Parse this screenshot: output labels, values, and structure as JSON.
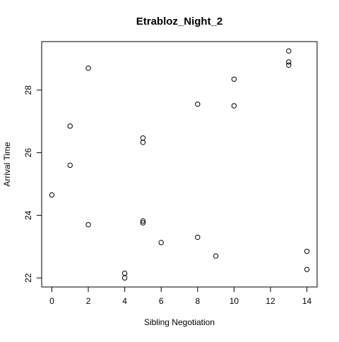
{
  "chart_data": {
    "type": "scatter",
    "title": "Etrabloz_Night_2",
    "xlabel": "Sibling Negotiation",
    "ylabel": "Arrival Time",
    "xlim": [
      -0.56,
      14.56
    ],
    "ylim": [
      21.71,
      29.55
    ],
    "xticks": [
      0,
      2,
      4,
      6,
      8,
      10,
      12,
      14
    ],
    "yticks": [
      22,
      24,
      26,
      28
    ],
    "grid": false,
    "legend": "none",
    "marker": "open-circle",
    "colors": {
      "axis": "#000000",
      "point": "#000000",
      "background": "#ffffff"
    },
    "points": [
      {
        "x": 0,
        "y": 24.65
      },
      {
        "x": 1,
        "y": 26.85
      },
      {
        "x": 1,
        "y": 25.6
      },
      {
        "x": 2,
        "y": 28.7
      },
      {
        "x": 2,
        "y": 23.7
      },
      {
        "x": 4,
        "y": 22.15
      },
      {
        "x": 4,
        "y": 22.0
      },
      {
        "x": 5,
        "y": 26.47
      },
      {
        "x": 5,
        "y": 26.33
      },
      {
        "x": 5,
        "y": 23.82
      },
      {
        "x": 5,
        "y": 23.76
      },
      {
        "x": 6,
        "y": 23.13
      },
      {
        "x": 8,
        "y": 27.55
      },
      {
        "x": 8,
        "y": 23.3
      },
      {
        "x": 9,
        "y": 22.7
      },
      {
        "x": 10,
        "y": 28.35
      },
      {
        "x": 10,
        "y": 27.5
      },
      {
        "x": 13,
        "y": 29.25
      },
      {
        "x": 13,
        "y": 28.9
      },
      {
        "x": 13,
        "y": 28.8
      },
      {
        "x": 14,
        "y": 22.85
      },
      {
        "x": 14,
        "y": 22.27
      }
    ]
  }
}
